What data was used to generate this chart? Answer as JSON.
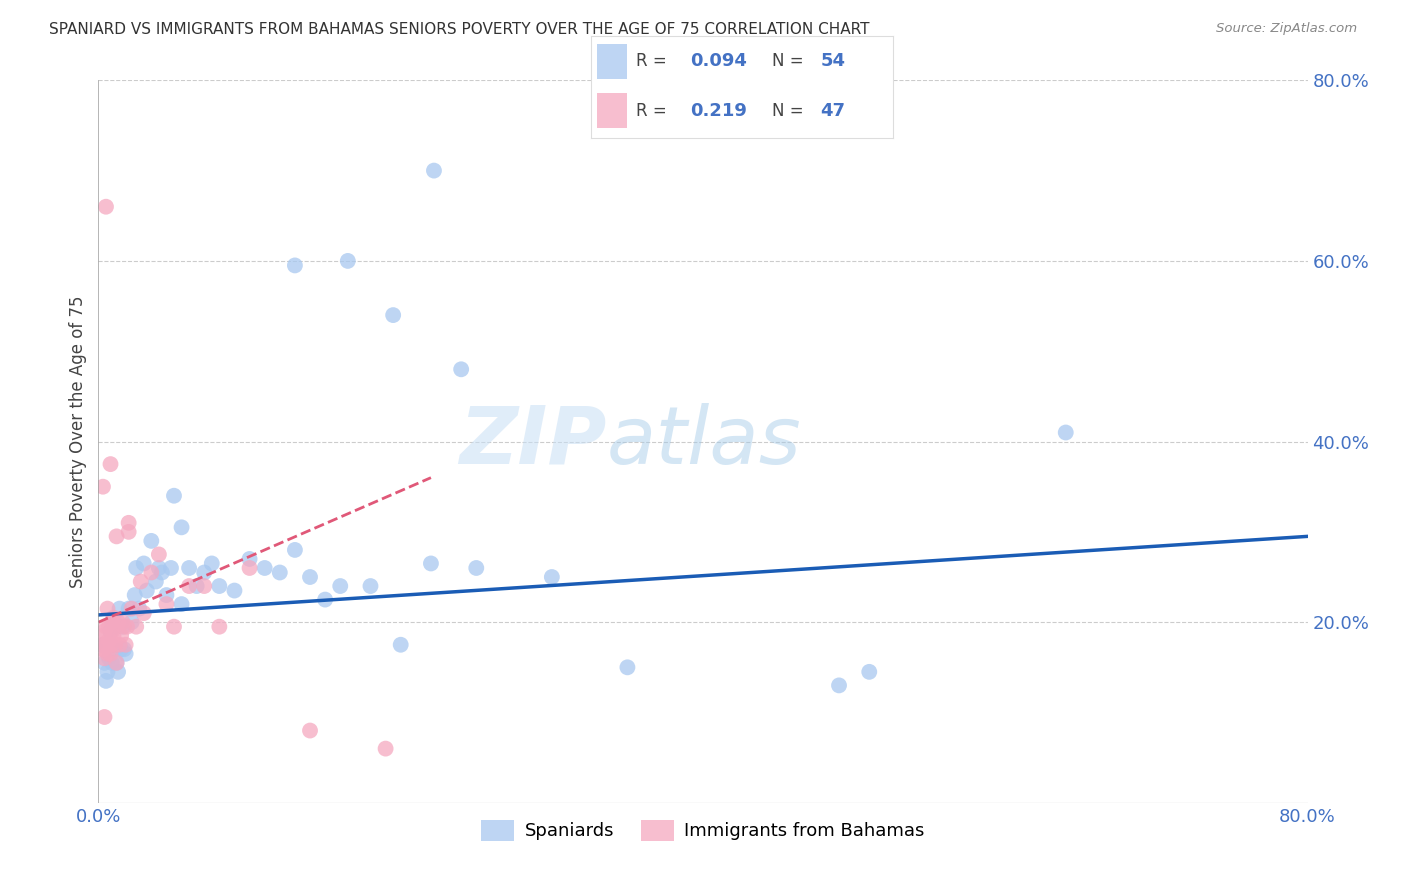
{
  "title": "SPANIARD VS IMMIGRANTS FROM BAHAMAS SENIORS POVERTY OVER THE AGE OF 75 CORRELATION CHART",
  "source": "Source: ZipAtlas.com",
  "ylabel": "Seniors Poverty Over the Age of 75",
  "xlim": [
    0.0,
    0.8
  ],
  "ylim": [
    0.0,
    0.8
  ],
  "grid_color": "#cccccc",
  "background_color": "#ffffff",
  "blue_color": "#a8c8f0",
  "pink_color": "#f5a8c0",
  "blue_line_color": "#1a5cb5",
  "pink_line_color": "#e05878",
  "watermark_zip": "ZIP",
  "watermark_atlas": "atlas",
  "blue_line_x": [
    0.0,
    0.8
  ],
  "blue_line_y": [
    0.208,
    0.295
  ],
  "pink_line_x": [
    0.0,
    0.22
  ],
  "pink_line_y": [
    0.2,
    0.36
  ],
  "spaniards_x": [
    0.003,
    0.004,
    0.005,
    0.006,
    0.007,
    0.008,
    0.008,
    0.009,
    0.01,
    0.011,
    0.012,
    0.013,
    0.014,
    0.015,
    0.016,
    0.017,
    0.018,
    0.02,
    0.022,
    0.024,
    0.025,
    0.027,
    0.03,
    0.032,
    0.035,
    0.038,
    0.04,
    0.042,
    0.045,
    0.048,
    0.05,
    0.055,
    0.06,
    0.065,
    0.07,
    0.075,
    0.08,
    0.09,
    0.1,
    0.11,
    0.12,
    0.13,
    0.14,
    0.15,
    0.16,
    0.18,
    0.2,
    0.22,
    0.25,
    0.3,
    0.35,
    0.49,
    0.51,
    0.64
  ],
  "spaniards_y": [
    0.175,
    0.155,
    0.135,
    0.145,
    0.16,
    0.19,
    0.175,
    0.155,
    0.2,
    0.17,
    0.155,
    0.145,
    0.215,
    0.17,
    0.195,
    0.17,
    0.165,
    0.215,
    0.2,
    0.23,
    0.26,
    0.215,
    0.265,
    0.235,
    0.29,
    0.245,
    0.26,
    0.255,
    0.23,
    0.26,
    0.34,
    0.305,
    0.26,
    0.24,
    0.255,
    0.265,
    0.24,
    0.235,
    0.27,
    0.26,
    0.255,
    0.28,
    0.25,
    0.225,
    0.24,
    0.24,
    0.175,
    0.265,
    0.26,
    0.25,
    0.15,
    0.13,
    0.145,
    0.41
  ],
  "spaniards_y_high": [
    0.22,
    0.595,
    0.6,
    0.54,
    0.48,
    0.7
  ],
  "spaniards_x_high": [
    0.055,
    0.13,
    0.165,
    0.195,
    0.24,
    0.222
  ],
  "bahamas_x": [
    0.002,
    0.003,
    0.003,
    0.004,
    0.004,
    0.005,
    0.005,
    0.006,
    0.006,
    0.007,
    0.007,
    0.008,
    0.008,
    0.009,
    0.009,
    0.01,
    0.01,
    0.011,
    0.012,
    0.013,
    0.014,
    0.015,
    0.016,
    0.017,
    0.018,
    0.019,
    0.02,
    0.022,
    0.025,
    0.028,
    0.03,
    0.035,
    0.04,
    0.045,
    0.05,
    0.06,
    0.07,
    0.08,
    0.1,
    0.14,
    0.19,
    0.005,
    0.003,
    0.008,
    0.02,
    0.012,
    0.004
  ],
  "bahamas_y": [
    0.175,
    0.185,
    0.17,
    0.16,
    0.19,
    0.175,
    0.195,
    0.165,
    0.215,
    0.18,
    0.195,
    0.175,
    0.165,
    0.19,
    0.2,
    0.185,
    0.205,
    0.175,
    0.155,
    0.2,
    0.175,
    0.185,
    0.2,
    0.195,
    0.175,
    0.195,
    0.3,
    0.215,
    0.195,
    0.245,
    0.21,
    0.255,
    0.275,
    0.22,
    0.195,
    0.24,
    0.24,
    0.195,
    0.26,
    0.08,
    0.06,
    0.66,
    0.35,
    0.375,
    0.31,
    0.295,
    0.095
  ]
}
